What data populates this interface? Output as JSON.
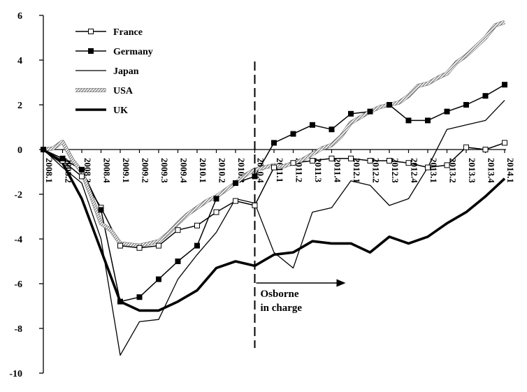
{
  "chart_data": {
    "type": "line",
    "title": "",
    "xlabel": "",
    "ylabel": "",
    "ylim": [
      -10,
      6
    ],
    "yticks": [
      6,
      4,
      2,
      0,
      -2,
      -4,
      -6,
      -8,
      -10
    ],
    "grid": false,
    "legend_position": "top-left",
    "categories": [
      "2008.1",
      "2008.2",
      "2008.3",
      "2008.4",
      "2009.1",
      "2009.2",
      "2009.3",
      "2009.4",
      "2010.1",
      "2010.2",
      "2010.3",
      "2010.4",
      "2011.1",
      "2011.2",
      "2011.3",
      "2011.4",
      "2012.1",
      "2012.2",
      "2012.3",
      "2012.4",
      "2013.1",
      "2013.2",
      "2013.3",
      "2013.4",
      "2014.1"
    ],
    "x": [
      0,
      0.5,
      1,
      1.5,
      2,
      2.5,
      3,
      3.5,
      4,
      4.5,
      5,
      5.5,
      6,
      6.5,
      7,
      7.5,
      8,
      8.5,
      9,
      9.5,
      10,
      10.5,
      11,
      11.5,
      12,
      12.5,
      13,
      13.5,
      14,
      14.5,
      15,
      15.5,
      16,
      16.5,
      17,
      17.5,
      18,
      18.5,
      19,
      19.5,
      20,
      20.5,
      21,
      21.5,
      22,
      22.5,
      23,
      23.5,
      24
    ],
    "tick_labels": [
      "2008.1",
      "2008.2",
      "2008.3",
      "2008.4",
      "2009.1",
      "2009.2",
      "2009.3",
      "2009.4",
      "2010.1",
      "2010.2",
      "2010.3",
      "2010.4",
      "2011.1",
      "2011.2",
      "2011.3",
      "2011.4",
      "2012.1",
      "2012.2",
      "2012.3",
      "2012.4",
      "2013.1",
      "2013.2",
      "2013.3",
      "2013.4",
      "2014.1"
    ],
    "series": [
      {
        "name": "France",
        "style": "line-open-square",
        "color": "#000000",
        "x": [
          0,
          1,
          2,
          3,
          4,
          5,
          6,
          7,
          8,
          9,
          10,
          11,
          12,
          13,
          14,
          15,
          16,
          17,
          18,
          19,
          20,
          21,
          22,
          23,
          24
        ],
        "values": [
          0,
          -0.5,
          -1.2,
          -2.6,
          -4.3,
          -4.4,
          -4.3,
          -3.6,
          -3.4,
          -2.8,
          -2.3,
          -2.5,
          -0.8,
          -0.6,
          -0.5,
          -0.4,
          -0.4,
          -0.5,
          -0.5,
          -0.6,
          -0.8,
          -0.7,
          0.1,
          0.0,
          0.3
        ]
      },
      {
        "name": "Germany",
        "style": "line-filled-square",
        "color": "#000000",
        "x": [
          0,
          1,
          2,
          3,
          4,
          5,
          6,
          7,
          8,
          9,
          10,
          11,
          12,
          13,
          14,
          15,
          16,
          17,
          18,
          19,
          20,
          21,
          22,
          23,
          24
        ],
        "values": [
          0,
          -0.4,
          -0.9,
          -2.7,
          -6.8,
          -6.6,
          -5.8,
          -5.0,
          -4.3,
          -2.2,
          -1.5,
          -1.2,
          0.3,
          0.7,
          1.1,
          0.9,
          1.6,
          1.7,
          2.0,
          1.3,
          1.3,
          1.7,
          2.0,
          2.4,
          2.9
        ]
      },
      {
        "name": "Japan",
        "style": "thin-line",
        "color": "#000000",
        "x": [
          0,
          1,
          2,
          3,
          4,
          5,
          6,
          7,
          8,
          9,
          10,
          11,
          12,
          13,
          14,
          15,
          16,
          17,
          18,
          19,
          20,
          21,
          22,
          23,
          24
        ],
        "values": [
          0,
          -0.8,
          -1.5,
          -4.0,
          -9.2,
          -7.7,
          -7.6,
          -5.8,
          -4.7,
          -3.7,
          -2.2,
          -2.4,
          -4.6,
          -5.3,
          -2.8,
          -2.6,
          -1.4,
          -1.6,
          -2.5,
          -2.2,
          -0.8,
          0.9,
          1.1,
          1.3,
          2.2
        ]
      },
      {
        "name": "USA",
        "style": "hatched-thick-line",
        "color": "#8a8a8a",
        "x": [
          0,
          0.5,
          1,
          1.5,
          2,
          2.5,
          3,
          3.5,
          4,
          4.5,
          5,
          5.5,
          6,
          6.5,
          7,
          7.5,
          8,
          8.5,
          9,
          9.5,
          10,
          10.5,
          11,
          11.5,
          12,
          12.5,
          13,
          13.5,
          14,
          14.5,
          15,
          15.5,
          16,
          16.5,
          17,
          17.5,
          18,
          18.5,
          19,
          19.5,
          20,
          20.5,
          21,
          21.5,
          22,
          22.5,
          23,
          23.5,
          24
        ],
        "values": [
          0,
          0.05,
          0.35,
          -0.45,
          -1.0,
          -2.1,
          -3.3,
          -3.6,
          -4.2,
          -4.25,
          -4.3,
          -4.2,
          -4.1,
          -3.75,
          -3.3,
          -2.9,
          -2.6,
          -2.3,
          -2.1,
          -1.8,
          -1.5,
          -1.15,
          -0.9,
          -0.8,
          -0.7,
          -0.75,
          -0.6,
          -0.45,
          -0.2,
          0.05,
          0.2,
          0.6,
          1.2,
          1.45,
          1.7,
          1.9,
          2.0,
          2.1,
          2.4,
          2.85,
          2.95,
          3.2,
          3.4,
          3.9,
          4.2,
          4.6,
          5.0,
          5.55,
          5.7
        ]
      },
      {
        "name": "UK",
        "style": "thick-line",
        "color": "#000000",
        "x": [
          0,
          1,
          2,
          3,
          4,
          5,
          6,
          7,
          8,
          9,
          10,
          11,
          12,
          13,
          14,
          15,
          16,
          17,
          18,
          19,
          20,
          21,
          22,
          23,
          24
        ],
        "values": [
          0,
          -0.6,
          -2.2,
          -4.5,
          -6.8,
          -7.2,
          -7.2,
          -6.8,
          -6.3,
          -5.3,
          -5.0,
          -5.2,
          -4.7,
          -4.6,
          -4.1,
          -4.2,
          -4.2,
          -4.6,
          -3.9,
          -4.2,
          -3.9,
          -3.3,
          -2.8,
          -2.1,
          -1.3
        ]
      }
    ],
    "annotations": [
      {
        "text_lines": [
          "Osborne",
          "in charge"
        ],
        "marker_x": 11,
        "arrow": "right"
      }
    ]
  }
}
